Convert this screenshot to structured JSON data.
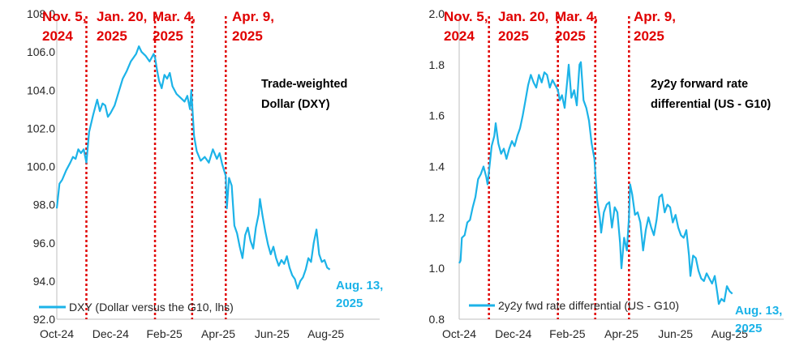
{
  "colors": {
    "series": "#1cb3e8",
    "event_line": "#e00000",
    "axis": "#bfbfbf",
    "text": "#262626"
  },
  "chart_data": [
    {
      "type": "line",
      "title": "Trade-weighted Dollar (DXY)",
      "title_lines": [
        "Trade-weighted",
        "Dollar (DXY)"
      ],
      "ylim": [
        92.0,
        108.0
      ],
      "yticks": [
        "92.0",
        "94.0",
        "96.0",
        "98.0",
        "100.0",
        "102.0",
        "104.0",
        "106.0",
        "108.0"
      ],
      "x_tick_labels": [
        "Oct-24",
        "Dec-24",
        "Feb-25",
        "Apr-25",
        "Jun-25",
        "Aug-25"
      ],
      "legend": "DXY (Dollar versus the G10, lhs)",
      "end_label": [
        "Aug. 13,",
        "2025"
      ],
      "events": [
        {
          "label": [
            "Nov. 5,",
            "2024"
          ],
          "month": 1.1
        },
        {
          "label": [
            "Jan. 20,",
            "2025"
          ],
          "month": 3.65
        },
        {
          "label": [
            "Mar. 4,",
            "2025"
          ],
          "month": 5.03
        },
        {
          "label": [
            "Apr. 9,",
            "2025"
          ],
          "month": 6.28
        }
      ],
      "series": [
        {
          "name": "DXY (Dollar versus the G10, lhs)",
          "points": [
            [
              0.0,
              97.8
            ],
            [
              0.1,
              99.1
            ],
            [
              0.2,
              99.3
            ],
            [
              0.35,
              99.8
            ],
            [
              0.5,
              100.2
            ],
            [
              0.6,
              100.5
            ],
            [
              0.7,
              100.4
            ],
            [
              0.8,
              100.9
            ],
            [
              0.9,
              100.7
            ],
            [
              1.0,
              100.9
            ],
            [
              1.1,
              100.2
            ],
            [
              1.2,
              101.8
            ],
            [
              1.35,
              102.7
            ],
            [
              1.5,
              103.5
            ],
            [
              1.6,
              102.9
            ],
            [
              1.7,
              103.3
            ],
            [
              1.8,
              103.2
            ],
            [
              1.9,
              102.6
            ],
            [
              2.0,
              102.8
            ],
            [
              2.15,
              103.2
            ],
            [
              2.3,
              103.9
            ],
            [
              2.45,
              104.6
            ],
            [
              2.6,
              105.0
            ],
            [
              2.75,
              105.5
            ],
            [
              2.85,
              105.7
            ],
            [
              2.95,
              105.9
            ],
            [
              3.05,
              106.3
            ],
            [
              3.15,
              106.0
            ],
            [
              3.3,
              105.8
            ],
            [
              3.45,
              105.5
            ],
            [
              3.6,
              105.9
            ],
            [
              3.65,
              105.7
            ],
            [
              3.72,
              105.1
            ],
            [
              3.8,
              104.5
            ],
            [
              3.9,
              104.1
            ],
            [
              4.0,
              104.8
            ],
            [
              4.1,
              104.6
            ],
            [
              4.2,
              104.9
            ],
            [
              4.3,
              104.2
            ],
            [
              4.45,
              103.8
            ],
            [
              4.6,
              103.6
            ],
            [
              4.75,
              103.4
            ],
            [
              4.85,
              103.7
            ],
            [
              4.95,
              103.0
            ],
            [
              5.0,
              104.0
            ],
            [
              5.03,
              103.3
            ],
            [
              5.1,
              101.6
            ],
            [
              5.2,
              100.8
            ],
            [
              5.35,
              100.3
            ],
            [
              5.5,
              100.5
            ],
            [
              5.65,
              100.2
            ],
            [
              5.8,
              100.9
            ],
            [
              5.95,
              100.4
            ],
            [
              6.05,
              100.7
            ],
            [
              6.15,
              100.1
            ],
            [
              6.28,
              99.5
            ],
            [
              6.32,
              97.8
            ],
            [
              6.4,
              99.4
            ],
            [
              6.5,
              99.0
            ],
            [
              6.6,
              96.9
            ],
            [
              6.7,
              96.5
            ],
            [
              6.8,
              95.8
            ],
            [
              6.9,
              95.2
            ],
            [
              7.0,
              96.4
            ],
            [
              7.1,
              96.8
            ],
            [
              7.2,
              96.1
            ],
            [
              7.3,
              95.7
            ],
            [
              7.4,
              96.8
            ],
            [
              7.5,
              97.5
            ],
            [
              7.55,
              98.3
            ],
            [
              7.65,
              97.4
            ],
            [
              7.75,
              96.6
            ],
            [
              7.85,
              95.9
            ],
            [
              7.95,
              95.4
            ],
            [
              8.05,
              95.8
            ],
            [
              8.15,
              95.2
            ],
            [
              8.25,
              94.8
            ],
            [
              8.35,
              95.1
            ],
            [
              8.45,
              94.9
            ],
            [
              8.55,
              95.3
            ],
            [
              8.65,
              94.7
            ],
            [
              8.75,
              94.3
            ],
            [
              8.85,
              94.1
            ],
            [
              8.95,
              93.6
            ],
            [
              9.05,
              94.0
            ],
            [
              9.15,
              94.2
            ],
            [
              9.25,
              94.6
            ],
            [
              9.35,
              95.2
            ],
            [
              9.45,
              95.0
            ],
            [
              9.55,
              96.0
            ],
            [
              9.65,
              96.7
            ],
            [
              9.75,
              95.4
            ],
            [
              9.85,
              95.0
            ],
            [
              9.95,
              95.1
            ],
            [
              10.05,
              94.7
            ],
            [
              10.15,
              94.6
            ]
          ]
        }
      ]
    },
    {
      "type": "line",
      "title": "2y2y forward rate differential (US - G10)",
      "title_lines": [
        "2y2y forward rate",
        "differential (US - G10)"
      ],
      "ylim": [
        0.8,
        2.0
      ],
      "yticks": [
        "0.8",
        "1.0",
        "1.2",
        "1.4",
        "1.6",
        "1.8",
        "2.0"
      ],
      "x_tick_labels": [
        "Oct-24",
        "Dec-24",
        "Feb-25",
        "Apr-25",
        "Jun-25",
        "Aug-25"
      ],
      "legend": "2y2y fwd rate differential (US - G10)",
      "end_label": [
        "Aug. 13,",
        "2025"
      ],
      "events": [
        {
          "label": [
            "Nov. 5,",
            "2024"
          ],
          "month": 1.1
        },
        {
          "label": [
            "Jan. 20,",
            "2025"
          ],
          "month": 3.65
        },
        {
          "label": [
            "Mar. 4,",
            "2025"
          ],
          "month": 5.03
        },
        {
          "label": [
            "Apr. 9,",
            "2025"
          ],
          "month": 6.28
        }
      ],
      "series": [
        {
          "name": "2y2y fwd rate differential (US - G10)",
          "points": [
            [
              0.0,
              1.02
            ],
            [
              0.05,
              1.03
            ],
            [
              0.1,
              1.12
            ],
            [
              0.2,
              1.13
            ],
            [
              0.3,
              1.18
            ],
            [
              0.4,
              1.19
            ],
            [
              0.5,
              1.24
            ],
            [
              0.6,
              1.28
            ],
            [
              0.7,
              1.35
            ],
            [
              0.8,
              1.37
            ],
            [
              0.9,
              1.4
            ],
            [
              1.0,
              1.36
            ],
            [
              1.05,
              1.33
            ],
            [
              1.1,
              1.38
            ],
            [
              1.2,
              1.48
            ],
            [
              1.3,
              1.52
            ],
            [
              1.35,
              1.57
            ],
            [
              1.45,
              1.49
            ],
            [
              1.55,
              1.45
            ],
            [
              1.65,
              1.47
            ],
            [
              1.75,
              1.43
            ],
            [
              1.85,
              1.47
            ],
            [
              1.95,
              1.5
            ],
            [
              2.05,
              1.48
            ],
            [
              2.15,
              1.52
            ],
            [
              2.25,
              1.55
            ],
            [
              2.35,
              1.6
            ],
            [
              2.45,
              1.66
            ],
            [
              2.55,
              1.72
            ],
            [
              2.65,
              1.76
            ],
            [
              2.75,
              1.73
            ],
            [
              2.85,
              1.71
            ],
            [
              2.95,
              1.76
            ],
            [
              3.05,
              1.73
            ],
            [
              3.15,
              1.77
            ],
            [
              3.25,
              1.76
            ],
            [
              3.35,
              1.71
            ],
            [
              3.45,
              1.74
            ],
            [
              3.55,
              1.72
            ],
            [
              3.65,
              1.7
            ],
            [
              3.72,
              1.66
            ],
            [
              3.8,
              1.68
            ],
            [
              3.9,
              1.63
            ],
            [
              4.0,
              1.74
            ],
            [
              4.05,
              1.8
            ],
            [
              4.15,
              1.67
            ],
            [
              4.25,
              1.7
            ],
            [
              4.35,
              1.64
            ],
            [
              4.45,
              1.8
            ],
            [
              4.5,
              1.81
            ],
            [
              4.6,
              1.66
            ],
            [
              4.7,
              1.63
            ],
            [
              4.8,
              1.58
            ],
            [
              4.9,
              1.49
            ],
            [
              5.0,
              1.43
            ],
            [
              5.03,
              1.38
            ],
            [
              5.1,
              1.27
            ],
            [
              5.2,
              1.2
            ],
            [
              5.25,
              1.14
            ],
            [
              5.35,
              1.22
            ],
            [
              5.45,
              1.25
            ],
            [
              5.55,
              1.26
            ],
            [
              5.65,
              1.16
            ],
            [
              5.75,
              1.24
            ],
            [
              5.85,
              1.22
            ],
            [
              5.95,
              1.1
            ],
            [
              6.0,
              1.0
            ],
            [
              6.1,
              1.12
            ],
            [
              6.2,
              1.07
            ],
            [
              6.28,
              1.2
            ],
            [
              6.32,
              1.33
            ],
            [
              6.4,
              1.29
            ],
            [
              6.5,
              1.21
            ],
            [
              6.6,
              1.22
            ],
            [
              6.7,
              1.18
            ],
            [
              6.8,
              1.07
            ],
            [
              6.9,
              1.15
            ],
            [
              7.0,
              1.2
            ],
            [
              7.1,
              1.16
            ],
            [
              7.2,
              1.13
            ],
            [
              7.3,
              1.19
            ],
            [
              7.4,
              1.28
            ],
            [
              7.5,
              1.29
            ],
            [
              7.6,
              1.22
            ],
            [
              7.7,
              1.25
            ],
            [
              7.8,
              1.24
            ],
            [
              7.9,
              1.18
            ],
            [
              8.0,
              1.21
            ],
            [
              8.1,
              1.16
            ],
            [
              8.2,
              1.13
            ],
            [
              8.3,
              1.12
            ],
            [
              8.4,
              1.15
            ],
            [
              8.5,
              1.05
            ],
            [
              8.55,
              0.97
            ],
            [
              8.65,
              1.05
            ],
            [
              8.75,
              1.04
            ],
            [
              8.85,
              0.99
            ],
            [
              8.95,
              0.96
            ],
            [
              9.05,
              0.95
            ],
            [
              9.15,
              0.98
            ],
            [
              9.25,
              0.96
            ],
            [
              9.35,
              0.94
            ],
            [
              9.45,
              0.97
            ],
            [
              9.55,
              0.9
            ],
            [
              9.6,
              0.86
            ],
            [
              9.7,
              0.88
            ],
            [
              9.8,
              0.87
            ],
            [
              9.9,
              0.93
            ],
            [
              10.0,
              0.91
            ],
            [
              10.1,
              0.9
            ]
          ]
        }
      ]
    }
  ]
}
